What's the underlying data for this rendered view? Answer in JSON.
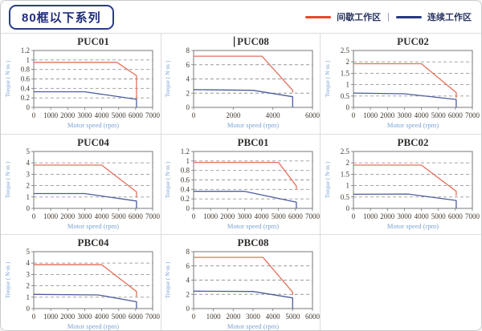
{
  "header": {
    "badge": "80框以下系列",
    "legend_separator": "|",
    "legend": [
      {
        "label": "间歇工作区",
        "color": "#e8472b"
      },
      {
        "label": "连续工作区",
        "color": "#27397e"
      }
    ]
  },
  "style": {
    "line_red": "#e4705a",
    "line_blue": "#4d5c9c",
    "grid_color": "#999999",
    "plot_border": "#777777",
    "tick_text": "#443a30",
    "axis_label_blue": "#7aa3d4",
    "title_color": "#33302e"
  },
  "chart_data": [
    {
      "type": "line",
      "title": "PUC01",
      "xlabel": "Motor speed (rpm)",
      "ylabel": "Torque ( N·m )",
      "xlim": [
        0,
        7000
      ],
      "xticks": [
        0,
        1000,
        2000,
        3000,
        4000,
        5000,
        6000,
        7000
      ],
      "ylim": [
        0,
        1.2
      ],
      "yticks": [
        0,
        0.2,
        0.4,
        0.6,
        0.8,
        1,
        1.2
      ],
      "grid": "dashed-horizontal",
      "legend_position": "none",
      "series": [
        {
          "name": "间歇工作区",
          "color": "#e4705a",
          "points": [
            [
              0,
              0.95
            ],
            [
              4900,
              0.95
            ],
            [
              6050,
              0.67
            ],
            [
              6050,
              0.18
            ]
          ]
        },
        {
          "name": "连续工作区",
          "color": "#4d5c9c",
          "points": [
            [
              0,
              0.33
            ],
            [
              3000,
              0.33
            ],
            [
              6050,
              0.17
            ],
            [
              6050,
              0
            ]
          ]
        }
      ]
    },
    {
      "type": "line",
      "title": "PUC08",
      "has_text_cursor": true,
      "xlabel": "Motor speed (rpm)",
      "ylabel": "Torque ( N·m )",
      "xlim": [
        0,
        6000
      ],
      "xticks": [
        0,
        2000,
        4000,
        6000
      ],
      "ylim": [
        0,
        8
      ],
      "yticks": [
        0,
        2,
        4,
        6,
        8
      ],
      "grid": "dashed-horizontal",
      "legend_position": "none",
      "series": [
        {
          "name": "间歇工作区",
          "color": "#e4705a",
          "points": [
            [
              0,
              7.2
            ],
            [
              3450,
              7.2
            ],
            [
              5000,
              2.4
            ],
            [
              5000,
              2.1
            ]
          ]
        },
        {
          "name": "连续工作区",
          "color": "#4d5c9c",
          "points": [
            [
              0,
              2.5
            ],
            [
              3000,
              2.4
            ],
            [
              5000,
              1.5
            ],
            [
              5000,
              0
            ]
          ]
        }
      ]
    },
    {
      "type": "line",
      "title": "PUC02",
      "xlabel": "Motor speed (rpm)",
      "ylabel": "Torque ( N·m )",
      "xlim": [
        0,
        7000
      ],
      "xticks": [
        0,
        1000,
        2000,
        3000,
        4000,
        5000,
        6000,
        7000
      ],
      "ylim": [
        0,
        2.5
      ],
      "yticks": [
        0,
        0.5,
        1,
        1.5,
        2,
        2.5
      ],
      "grid": "dashed-horizontal",
      "legend_position": "none",
      "series": [
        {
          "name": "间歇工作区",
          "color": "#e4705a",
          "points": [
            [
              0,
              1.92
            ],
            [
              4000,
              1.92
            ],
            [
              6050,
              0.65
            ],
            [
              6050,
              0.42
            ]
          ]
        },
        {
          "name": "连续工作区",
          "color": "#4d5c9c",
          "points": [
            [
              0,
              0.63
            ],
            [
              3000,
              0.6
            ],
            [
              6050,
              0.35
            ],
            [
              6050,
              0
            ]
          ]
        }
      ]
    },
    {
      "type": "line",
      "title": "PUC04",
      "xlabel": "Motor speed (rpm)",
      "ylabel": "Torque ( N·m )",
      "xlim": [
        0,
        7000
      ],
      "xticks": [
        0,
        1000,
        2000,
        3000,
        4000,
        5000,
        6000,
        7000
      ],
      "ylim": [
        0,
        5
      ],
      "yticks": [
        0,
        1,
        2,
        3,
        4,
        5
      ],
      "grid": "dashed-horizontal",
      "legend_position": "none",
      "series": [
        {
          "name": "间歇工作区",
          "color": "#e4705a",
          "points": [
            [
              0,
              3.8
            ],
            [
              4000,
              3.8
            ],
            [
              6050,
              1.45
            ],
            [
              6050,
              0.95
            ]
          ]
        },
        {
          "name": "连续工作区",
          "color": "#4d5c9c",
          "points": [
            [
              0,
              1.3
            ],
            [
              3000,
              1.3
            ],
            [
              6050,
              0.65
            ],
            [
              6050,
              0
            ]
          ]
        }
      ]
    },
    {
      "type": "line",
      "title": "PBC01",
      "xlabel": "Motor speed (rpm)",
      "ylabel": "Torque ( N·m )",
      "xlim": [
        0,
        7000
      ],
      "xticks": [
        0,
        1000,
        2000,
        3000,
        4000,
        5000,
        6000,
        7000
      ],
      "ylim": [
        0,
        1.2
      ],
      "yticks": [
        0,
        0.2,
        0.4,
        0.6,
        0.8,
        1,
        1.2
      ],
      "grid": "dashed-horizontal",
      "legend_position": "none",
      "series": [
        {
          "name": "间歇工作区",
          "color": "#e4705a",
          "points": [
            [
              0,
              0.97
            ],
            [
              5000,
              0.97
            ],
            [
              6050,
              0.47
            ],
            [
              6050,
              0.4
            ]
          ]
        },
        {
          "name": "连续工作区",
          "color": "#4d5c9c",
          "points": [
            [
              0,
              0.36
            ],
            [
              3000,
              0.36
            ],
            [
              6050,
              0.13
            ],
            [
              6050,
              0
            ]
          ]
        }
      ]
    },
    {
      "type": "line",
      "title": "PBC02",
      "xlabel": "Motor speed (rpm)",
      "ylabel": "Torque ( N·m )",
      "xlim": [
        0,
        7000
      ],
      "xticks": [
        0,
        1000,
        2000,
        3000,
        4000,
        5000,
        6000,
        7000
      ],
      "ylim": [
        0,
        2.5
      ],
      "yticks": [
        0,
        0.5,
        1,
        1.5,
        2,
        2.5
      ],
      "grid": "dashed-horizontal",
      "legend_position": "none",
      "series": [
        {
          "name": "间歇工作区",
          "color": "#e4705a",
          "points": [
            [
              0,
              1.9
            ],
            [
              4000,
              1.9
            ],
            [
              6050,
              0.75
            ],
            [
              6050,
              0.55
            ]
          ]
        },
        {
          "name": "连续工作区",
          "color": "#4d5c9c",
          "points": [
            [
              0,
              0.62
            ],
            [
              3200,
              0.63
            ],
            [
              6050,
              0.35
            ],
            [
              6050,
              0
            ]
          ]
        }
      ]
    },
    {
      "type": "line",
      "title": "PBC04",
      "xlabel": "Motor speed (rpm)",
      "ylabel": "Torque ( N·m )",
      "xlim": [
        0,
        7000
      ],
      "xticks": [
        0,
        1000,
        2000,
        3000,
        4000,
        5000,
        6000,
        7000
      ],
      "ylim": [
        0,
        5
      ],
      "yticks": [
        0,
        1,
        2,
        3,
        4,
        5
      ],
      "grid": "dashed-horizontal",
      "legend_position": "none",
      "series": [
        {
          "name": "间歇工作区",
          "color": "#e4705a",
          "points": [
            [
              0,
              3.85
            ],
            [
              4000,
              3.85
            ],
            [
              6050,
              1.5
            ],
            [
              6050,
              1.05
            ]
          ]
        },
        {
          "name": "连续工作区",
          "color": "#4d5c9c",
          "points": [
            [
              0,
              1.25
            ],
            [
              3800,
              1.2
            ],
            [
              6050,
              0.6
            ],
            [
              6050,
              0
            ]
          ]
        }
      ]
    },
    {
      "type": "line",
      "title": "PBC08",
      "xlabel": "Motor speed (rpm)",
      "ylabel": "Torque ( N·m )",
      "xlim": [
        0,
        6000
      ],
      "xticks": [
        0,
        1000,
        2000,
        3000,
        4000,
        5000,
        6000
      ],
      "ylim": [
        0,
        8
      ],
      "yticks": [
        0,
        2,
        4,
        6,
        8
      ],
      "grid": "dashed-horizontal",
      "legend_position": "none",
      "series": [
        {
          "name": "间歇工作区",
          "color": "#e4705a",
          "points": [
            [
              0,
              7.2
            ],
            [
              3500,
              7.2
            ],
            [
              5000,
              2.3
            ],
            [
              5000,
              1.9
            ]
          ]
        },
        {
          "name": "连续工作区",
          "color": "#4d5c9c",
          "points": [
            [
              0,
              2.45
            ],
            [
              3000,
              2.4
            ],
            [
              5000,
              1.5
            ],
            [
              5000,
              0
            ]
          ]
        }
      ]
    }
  ]
}
